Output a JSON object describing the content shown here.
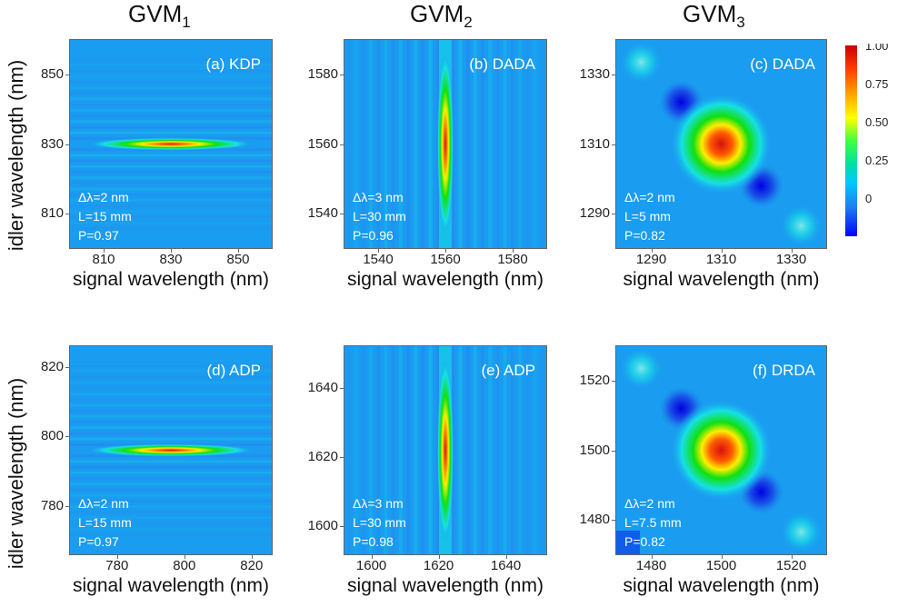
{
  "columns": [
    {
      "label": "GVM",
      "sub": "1"
    },
    {
      "label": "GVM",
      "sub": "2"
    },
    {
      "label": "GVM",
      "sub": "3"
    }
  ],
  "ylabel": "idler wavelength (nm)",
  "xlabel": "signal wavelength (nm)",
  "colorbar": {
    "ticks": [
      "1.00",
      "0.75",
      "0.50",
      "0.25",
      "0"
    ],
    "range": [
      -0.25,
      1.0
    ]
  },
  "colors": {
    "low": "#0000e0",
    "background": "#1a9cf0",
    "cyan": "#16e0e6",
    "green": "#10e010",
    "yellow": "#ffee00",
    "red": "#d61010",
    "text": "#ffffff"
  },
  "chart_data": [
    {
      "type": "heatmap",
      "panel": "(a) KDP",
      "shape": "horizontal-fringe",
      "center": 830,
      "xlim": [
        800,
        860
      ],
      "ylim": [
        800,
        860
      ],
      "xticks": [
        810,
        830,
        850
      ],
      "yticks": [
        810,
        830,
        850
      ],
      "annotations": [
        "Δλ=2 nm",
        "L=15 mm",
        "P=0.97"
      ]
    },
    {
      "type": "heatmap",
      "panel": "(b) DADA",
      "shape": "vertical-fringe",
      "center": 1560,
      "xlim": [
        1530,
        1590
      ],
      "ylim": [
        1530,
        1590
      ],
      "xticks": [
        1540,
        1560,
        1580
      ],
      "yticks": [
        1540,
        1560,
        1580
      ],
      "annotations": [
        "Δλ=3 nm",
        "L=30 mm",
        "P=0.96"
      ]
    },
    {
      "type": "heatmap",
      "panel": "(c) DADA",
      "shape": "round",
      "center": 1310,
      "xlim": [
        1280,
        1340
      ],
      "ylim": [
        1280,
        1340
      ],
      "xticks": [
        1290,
        1310,
        1330
      ],
      "yticks": [
        1290,
        1310,
        1330
      ],
      "annotations": [
        "Δλ=2 nm",
        "L=5 mm",
        "P=0.82"
      ]
    },
    {
      "type": "heatmap",
      "panel": "(d) ADP",
      "shape": "horizontal-fringe",
      "center": 796,
      "xlim": [
        766,
        826
      ],
      "ylim": [
        766,
        826
      ],
      "xticks": [
        780,
        800,
        820
      ],
      "yticks": [
        780,
        800,
        820
      ],
      "annotations": [
        "Δλ=2 nm",
        "L=15 mm",
        "P=0.97"
      ]
    },
    {
      "type": "heatmap",
      "panel": "(e) ADP",
      "shape": "vertical-fringe",
      "center": 1622,
      "xlim": [
        1592,
        1652
      ],
      "ylim": [
        1592,
        1652
      ],
      "xticks": [
        1600,
        1620,
        1640
      ],
      "yticks": [
        1600,
        1620,
        1640
      ],
      "annotations": [
        "Δλ=3 nm",
        "L=30 mm",
        "P=0.98"
      ]
    },
    {
      "type": "heatmap",
      "panel": "(f) DRDA",
      "shape": "round",
      "center": 1500,
      "xlim": [
        1470,
        1530
      ],
      "ylim": [
        1470,
        1530
      ],
      "xticks": [
        1480,
        1500,
        1520
      ],
      "yticks": [
        1480,
        1500,
        1520
      ],
      "annotations": [
        "Δλ=2 nm",
        "L=7.5 mm",
        "P=0.82"
      ]
    }
  ]
}
